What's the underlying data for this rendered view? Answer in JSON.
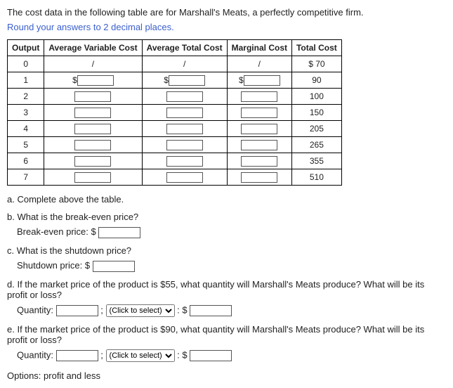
{
  "intro_text": "The cost data in the following table are for Marshall's Meats, a perfectly competitive firm.",
  "instruction_text": "Round your answers to 2 decimal places.",
  "table": {
    "headers": {
      "output": "Output",
      "avc": "Average Variable Cost",
      "atc": "Average Total Cost",
      "mc": "Marginal Cost",
      "tc": "Total Cost"
    },
    "slash": "/",
    "dollar": "$",
    "rows": [
      {
        "output": "0",
        "tc": "$ 70"
      },
      {
        "output": "1",
        "tc": "90"
      },
      {
        "output": "2",
        "tc": "100"
      },
      {
        "output": "3",
        "tc": "150"
      },
      {
        "output": "4",
        "tc": "205"
      },
      {
        "output": "5",
        "tc": "265"
      },
      {
        "output": "6",
        "tc": "355"
      },
      {
        "output": "7",
        "tc": "510"
      }
    ]
  },
  "parts": {
    "a": "a. Complete above the table.",
    "b": "b. What is the break-even price?",
    "b_label": "Break-even price: $",
    "c": "c. What is the shutdown price?",
    "c_label": "Shutdown price: $",
    "d": "d. If the market price of the product is $55, what quantity will Marshall's Meats produce? What will be its profit or loss?",
    "e": "e. If the market price of the product is $90, what quantity will Marshall's Meats produce? What will be its profit or loss?",
    "qty_label": "Quantity:",
    "semi": ";",
    "colon_dollar": ": $",
    "select_placeholder": "(Click to select)"
  },
  "footer": "Options: profit and less"
}
